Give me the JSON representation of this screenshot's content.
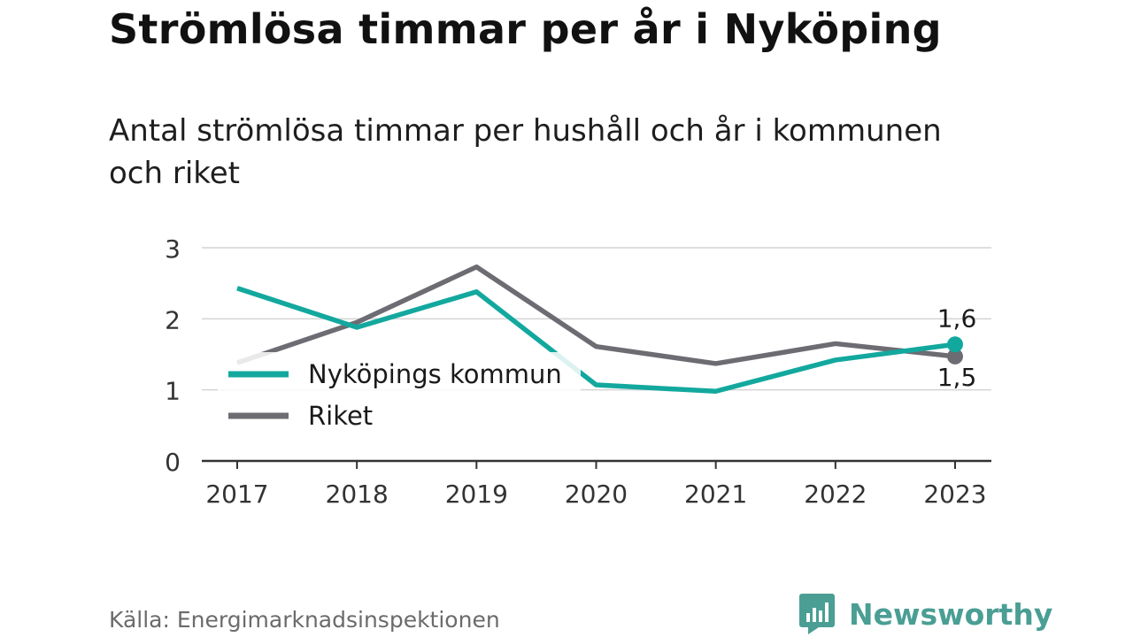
{
  "title": "Strömlösa timmar per år i Nyköping",
  "subtitle": "Antal strömlösa timmar per hushåll och år i kommunen och riket",
  "source": "Källa: Energimarknadsinspektionen",
  "brand": {
    "name": "Newsworthy",
    "icon": "newsworthy-logo-icon",
    "color": "#4a9e94"
  },
  "chart_data": {
    "type": "line",
    "categories": [
      "2017",
      "2018",
      "2019",
      "2020",
      "2021",
      "2022",
      "2023"
    ],
    "ylim": [
      0,
      3
    ],
    "yticks": [
      "0",
      "1",
      "2",
      "3"
    ],
    "grid": true,
    "legend_placement": "center-left",
    "series": [
      {
        "name": "Nyköpings kommun",
        "color": "#13a89e",
        "values": [
          2.43,
          1.88,
          2.38,
          1.07,
          0.98,
          1.42,
          1.64
        ],
        "end_label": "1,6"
      },
      {
        "name": "Riket",
        "color": "#6d6c73",
        "values": [
          1.38,
          1.95,
          2.73,
          1.61,
          1.37,
          1.65,
          1.47
        ],
        "end_label": "1,5"
      }
    ]
  }
}
